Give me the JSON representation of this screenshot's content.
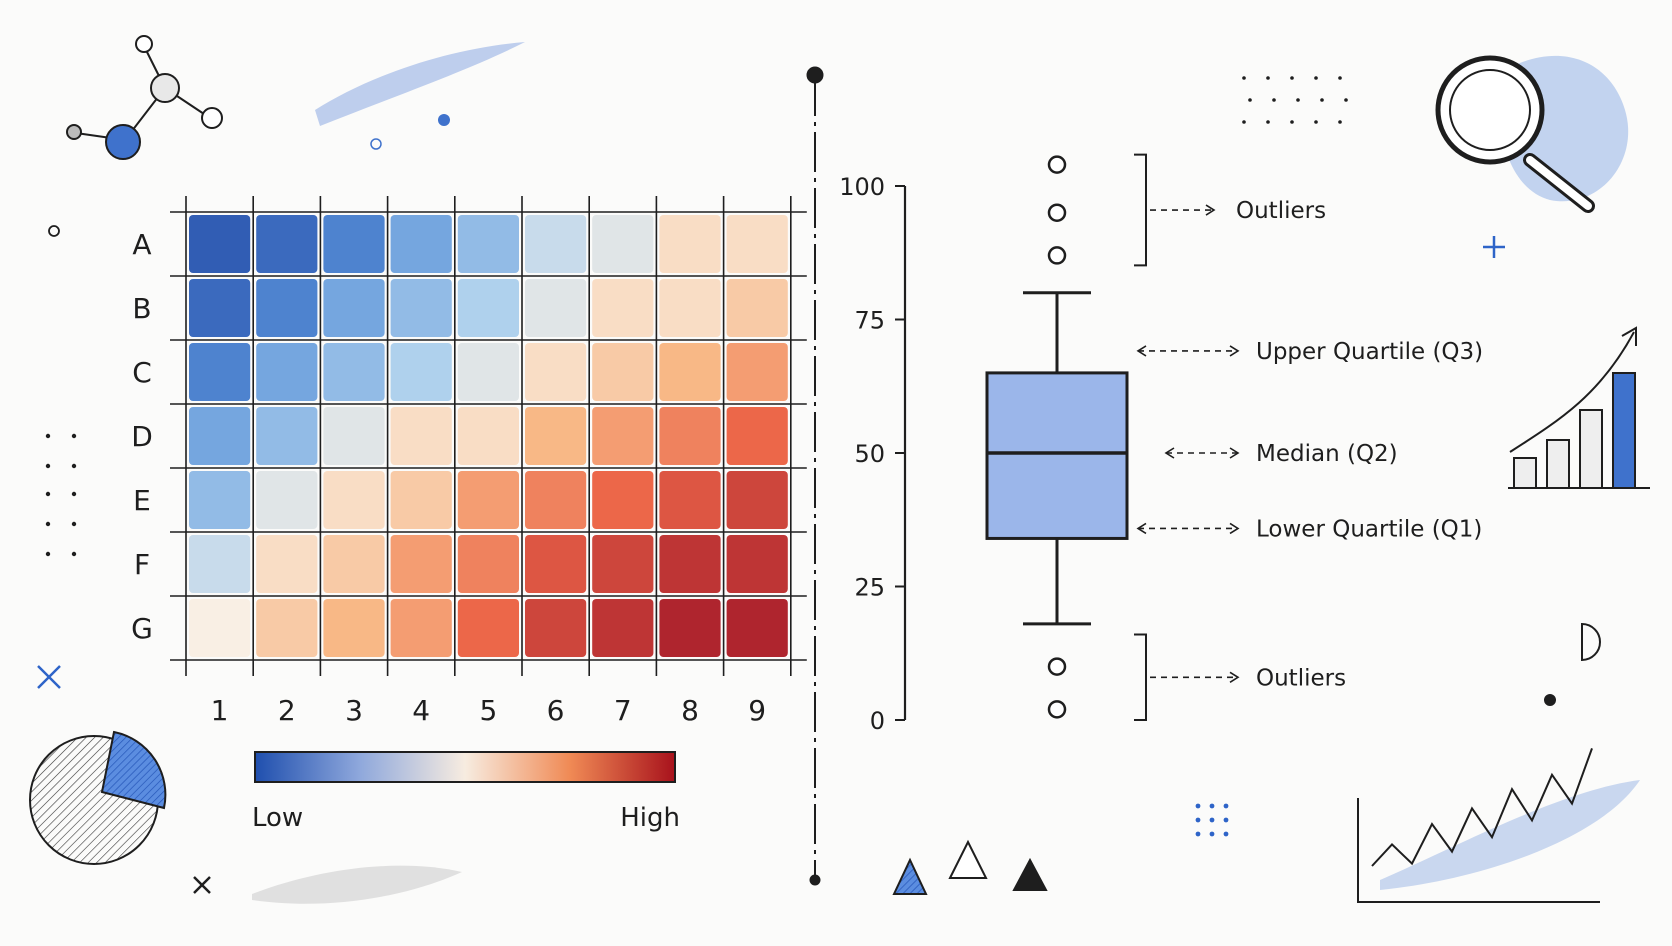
{
  "colors": {
    "ink": "#1e1e1e",
    "accent_blue": "#2e64c8",
    "wash_blue": "#8aa9e6",
    "low": "#1f4fae",
    "high": "#a8121c"
  },
  "chart_data": [
    {
      "type": "heatmap",
      "title": "",
      "rows": [
        "A",
        "B",
        "C",
        "D",
        "E",
        "F",
        "G"
      ],
      "columns": [
        "1",
        "2",
        "3",
        "4",
        "5",
        "6",
        "7",
        "8",
        "9"
      ],
      "values": [
        [
          0.0,
          0.05,
          0.15,
          0.25,
          0.3,
          0.4,
          0.45,
          0.55,
          0.55
        ],
        [
          0.05,
          0.15,
          0.25,
          0.3,
          0.35,
          0.45,
          0.55,
          0.55,
          0.6
        ],
        [
          0.15,
          0.25,
          0.3,
          0.35,
          0.45,
          0.55,
          0.6,
          0.65,
          0.7
        ],
        [
          0.25,
          0.3,
          0.45,
          0.55,
          0.55,
          0.65,
          0.7,
          0.75,
          0.8
        ],
        [
          0.3,
          0.45,
          0.55,
          0.6,
          0.7,
          0.75,
          0.8,
          0.85,
          0.9
        ],
        [
          0.4,
          0.55,
          0.6,
          0.7,
          0.75,
          0.85,
          0.9,
          0.95,
          0.95
        ],
        [
          0.5,
          0.6,
          0.65,
          0.7,
          0.8,
          0.9,
          0.95,
          1.0,
          1.0
        ]
      ],
      "colorbar": {
        "min_label": "Low",
        "max_label": "High"
      }
    },
    {
      "type": "box",
      "title": "",
      "yticks": [
        "0",
        "25",
        "50",
        "75",
        "100"
      ],
      "ylim": [
        0,
        100
      ],
      "whisker_low": 18,
      "q1": 34,
      "median": 50,
      "q3": 65,
      "whisker_high": 80,
      "outliers": [
        2,
        10,
        87,
        95,
        104
      ],
      "annotations": {
        "outliers_top": "Outliers",
        "q3": "Upper Quartile (Q3)",
        "median": "Median (Q2)",
        "q1": "Lower Quartile (Q1)",
        "outliers_bottom": "Outliers"
      }
    }
  ],
  "decor": {
    "mini_bars": [
      30,
      48,
      78,
      115
    ],
    "mini_line": [
      20,
      38,
      22,
      55,
      32,
      68,
      44,
      84,
      58,
      96,
      72,
      118
    ]
  }
}
